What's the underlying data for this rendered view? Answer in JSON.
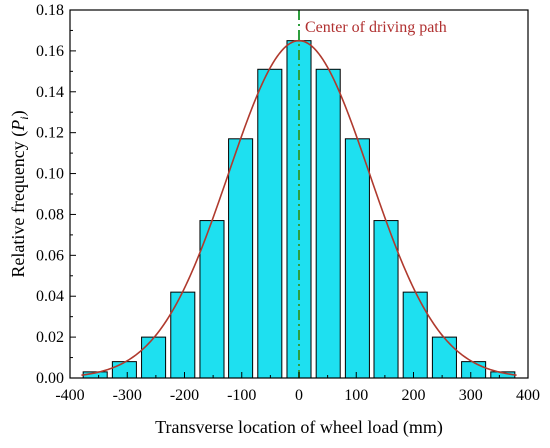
{
  "chart_data": {
    "type": "bar",
    "title": "",
    "xlabel": "Transverse location of wheel load (mm)",
    "ylabel_parts": [
      "Relative frequency (",
      "P",
      "i",
      ")"
    ],
    "xlim": [
      -400,
      400
    ],
    "ylim": [
      0,
      0.18
    ],
    "x_ticks": [
      -400,
      -300,
      -200,
      -100,
      0,
      100,
      200,
      300,
      400
    ],
    "y_ticks": [
      0.0,
      0.02,
      0.04,
      0.06,
      0.08,
      0.1,
      0.12,
      0.14,
      0.16,
      0.18
    ],
    "y_tick_labels": [
      "0.00",
      "0.02",
      "0.04",
      "0.06",
      "0.08",
      "0.10",
      "0.12",
      "0.14",
      "0.16",
      "0.18"
    ],
    "bar_width": 42,
    "x": [
      -356,
      -305,
      -254,
      -203,
      -152,
      -102,
      -51,
      0,
      51,
      102,
      152,
      203,
      254,
      305,
      356
    ],
    "values": [
      0.003,
      0.008,
      0.02,
      0.042,
      0.077,
      0.117,
      0.151,
      0.165,
      0.151,
      0.117,
      0.077,
      0.042,
      0.02,
      0.008,
      0.003
    ],
    "fit_curve": {
      "type": "normal",
      "mean": 0,
      "sigma": 123,
      "peak": 0.165
    },
    "annotation": {
      "text": "Center of driving path",
      "x": 0
    },
    "colors": {
      "bar_fill": "#1ee0f0",
      "bar_stroke": "#000000",
      "curve": "#b03a2e",
      "center_line": "#2e9e3e",
      "annotation_text": "#b03030"
    },
    "grid": false,
    "legend": "none"
  }
}
